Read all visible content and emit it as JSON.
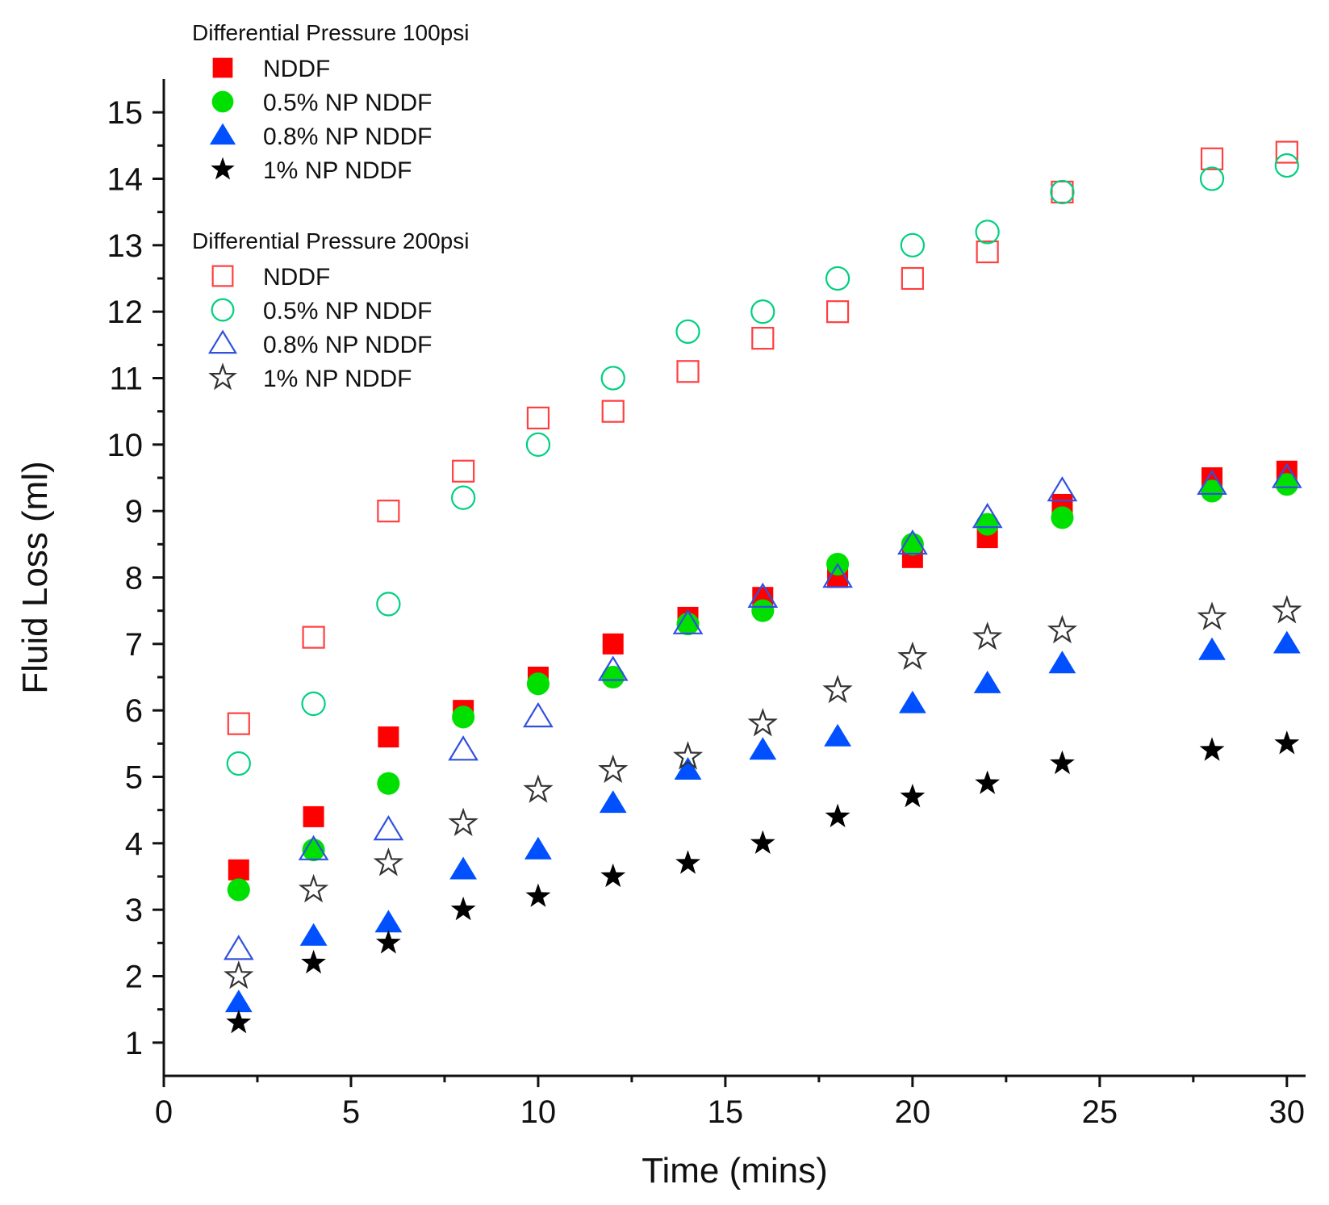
{
  "chart_data": {
    "type": "scatter",
    "xlabel": "Time (mins)",
    "ylabel": "Fluid Loss (ml)",
    "xlim": [
      0,
      30.5
    ],
    "ylim": [
      0.5,
      15.5
    ],
    "xticks": [
      0,
      5,
      10,
      15,
      20,
      25,
      30
    ],
    "yticks": [
      1,
      2,
      3,
      4,
      5,
      6,
      7,
      8,
      9,
      10,
      11,
      12,
      13,
      14,
      15
    ],
    "grid": false,
    "legend_position": "top-left",
    "legend_groups": [
      {
        "title": "Differential Pressure 100psi",
        "series": [
          0,
          1,
          2,
          3
        ]
      },
      {
        "title": "Differential Pressure 200psi",
        "series": [
          4,
          5,
          6,
          7
        ]
      }
    ],
    "x": [
      2,
      4,
      6,
      8,
      10,
      12,
      14,
      16,
      18,
      20,
      22,
      24,
      28,
      30
    ],
    "series": [
      {
        "name": "NDDF",
        "marker": "square",
        "filled": true,
        "color": "#ff0000",
        "values": [
          3.6,
          4.4,
          5.6,
          6.0,
          6.5,
          7.0,
          7.4,
          7.7,
          8.0,
          8.3,
          8.6,
          9.1,
          9.5,
          9.6
        ]
      },
      {
        "name": "0.5% NP NDDF",
        "marker": "circle",
        "filled": true,
        "color": "#00e000",
        "values": [
          3.3,
          3.9,
          4.9,
          5.9,
          6.4,
          6.5,
          7.3,
          7.5,
          8.2,
          8.5,
          8.8,
          8.9,
          9.3,
          9.4
        ]
      },
      {
        "name": "0.8% NP NDDF",
        "marker": "triangle",
        "filled": true,
        "color": "#0050ff",
        "values": [
          1.6,
          2.6,
          2.8,
          3.6,
          3.9,
          4.6,
          5.1,
          5.4,
          5.6,
          6.1,
          6.4,
          6.7,
          6.9,
          7.0
        ]
      },
      {
        "name": "1% NP NDDF",
        "marker": "star",
        "filled": true,
        "color": "#000000",
        "values": [
          1.3,
          2.2,
          2.5,
          3.0,
          3.2,
          3.5,
          3.7,
          4.0,
          4.4,
          4.7,
          4.9,
          5.2,
          5.4,
          5.5
        ]
      },
      {
        "name": "NDDF",
        "marker": "square",
        "filled": false,
        "color": "#ff4040",
        "values": [
          5.8,
          7.1,
          9.0,
          9.6,
          10.4,
          10.5,
          11.1,
          11.6,
          12.0,
          12.5,
          12.9,
          13.8,
          14.3,
          14.4
        ]
      },
      {
        "name": "0.5% NP NDDF",
        "marker": "circle",
        "filled": false,
        "color": "#00d080",
        "values": [
          5.2,
          6.1,
          7.6,
          9.2,
          10.0,
          11.0,
          11.7,
          12.0,
          12.5,
          13.0,
          13.2,
          13.8,
          14.0,
          14.2
        ]
      },
      {
        "name": "0.8% NP NDDF",
        "marker": "triangle",
        "filled": false,
        "color": "#3050e0",
        "values": [
          2.4,
          3.9,
          4.2,
          5.4,
          5.9,
          6.6,
          7.3,
          7.7,
          8.0,
          8.5,
          8.9,
          9.3,
          9.4,
          9.5
        ]
      },
      {
        "name": "1% NP NDDF",
        "marker": "star",
        "filled": false,
        "color": "#333333",
        "values": [
          2.0,
          3.3,
          3.7,
          4.3,
          4.8,
          5.1,
          5.3,
          5.8,
          6.3,
          6.8,
          7.1,
          7.2,
          7.4,
          7.5
        ]
      }
    ]
  }
}
